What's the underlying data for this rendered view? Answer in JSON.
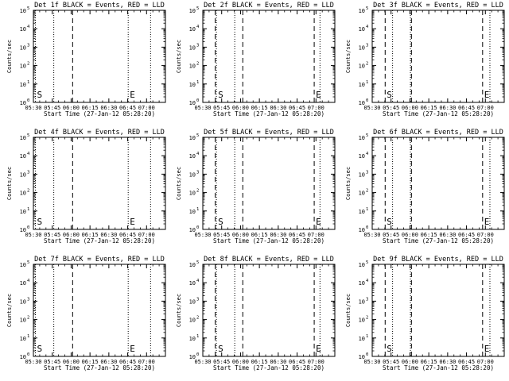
{
  "chart_data": {
    "type": "line",
    "layout": "3x3 grid of small multiples",
    "ylabel": "Counts/sec",
    "xlabel": "Start Time (27-Jan-12 05:28:20)",
    "x_tick_labels": [
      "05:30",
      "05:45",
      "06:00",
      "06:15",
      "06:30",
      "06:45",
      "07:00"
    ],
    "x_tick_minutes": [
      0,
      15,
      30,
      45,
      60,
      75,
      90
    ],
    "xlim_minutes": [
      0,
      105
    ],
    "ylim": [
      1,
      100000
    ],
    "yscale": "log",
    "y_tick_labels": [
      {
        "base": "10",
        "exp": "0",
        "decade": 0
      },
      {
        "base": "10",
        "exp": "1",
        "decade": 1
      },
      {
        "base": "10",
        "exp": "2",
        "decade": 2
      },
      {
        "base": "10",
        "exp": "3",
        "decade": 3
      },
      {
        "base": "10",
        "exp": "4",
        "decade": 4
      },
      {
        "base": "10",
        "exp": "5",
        "decade": 5
      }
    ],
    "series": [],
    "colors": {
      "events": "#000000",
      "lld": "#ff0000"
    },
    "panels": [
      {
        "title": "Det 1f BLACK = Events, RED = LLD",
        "col": 0
      },
      {
        "title": "Det 2f BLACK = Events, RED = LLD",
        "col": 1
      },
      {
        "title": "Det 3f BLACK = Events, RED = LLD",
        "col": 2
      },
      {
        "title": "Det 4f BLACK = Events, RED = LLD",
        "col": 0
      },
      {
        "title": "Det 5f BLACK = Events, RED = LLD",
        "col": 1
      },
      {
        "title": "Det 6f BLACK = Events, RED = LLD",
        "col": 2
      },
      {
        "title": "Det 7f BLACK = Events, RED = LLD",
        "col": 0
      },
      {
        "title": "Det 8f BLACK = Events, RED = LLD",
        "col": 1
      },
      {
        "title": "Det 9f BLACK = Events, RED = LLD",
        "col": 2
      }
    ],
    "markers_by_column": [
      {
        "dotted_minutes": [
          1.6,
          16.2,
          75.4,
          93.2
        ],
        "dashed_minutes": [
          31.2
        ],
        "start_minute": 1.6,
        "end_minute": 75.4
      },
      {
        "dotted_minutes": [
          10.8,
          25.4,
          93.2
        ],
        "dashed_minutes": [
          9.9,
          31.8,
          88.6
        ],
        "start_minute": 10.8,
        "end_minute": 88.6
      },
      {
        "dotted_minutes": [
          16.2,
          30.4,
          93.6
        ],
        "dashed_minutes": [
          10.3,
          31.2,
          87.8
        ],
        "start_minute": 10.3,
        "end_minute": 87.8
      }
    ],
    "marker_labels": {
      "start": "S",
      "end": "E"
    }
  }
}
